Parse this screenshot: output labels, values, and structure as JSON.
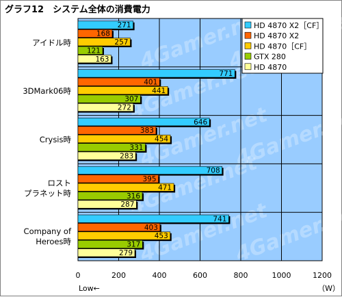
{
  "chart_data": {
    "type": "bar",
    "orientation": "horizontal",
    "title": "グラフ12　システム全体の消費電力",
    "categories": [
      [
        "アイドル時"
      ],
      [
        "3DMark06時"
      ],
      [
        "Crysis時"
      ],
      [
        "ロスト",
        "プラネット時"
      ],
      [
        "Company of",
        "Heroes時"
      ]
    ],
    "series": [
      {
        "name": "HD 4870 X2［CF］",
        "color": "#33ccff",
        "values": [
          271,
          771,
          646,
          708,
          741
        ]
      },
      {
        "name": "HD 4870 X2",
        "color": "#ff6600",
        "values": [
          168,
          401,
          383,
          395,
          403
        ]
      },
      {
        "name": "HD 4870［CF］",
        "color": "#ffcc00",
        "values": [
          257,
          441,
          454,
          471,
          453
        ]
      },
      {
        "name": "GTX 280",
        "color": "#99cc00",
        "values": [
          121,
          307,
          331,
          316,
          317
        ]
      },
      {
        "name": "HD 4870",
        "color": "#ffff99",
        "values": [
          163,
          272,
          283,
          287,
          279
        ]
      }
    ],
    "xlim": [
      0,
      1200
    ],
    "xticks": [
      "0",
      "200",
      "400",
      "600",
      "800",
      "1000",
      "1200"
    ],
    "xlabel_left": "Low←",
    "unit": "（W）",
    "plot_background": "#99ccff",
    "grid": true,
    "legend_position": "top-right",
    "watermark": "4Gamer.net"
  }
}
